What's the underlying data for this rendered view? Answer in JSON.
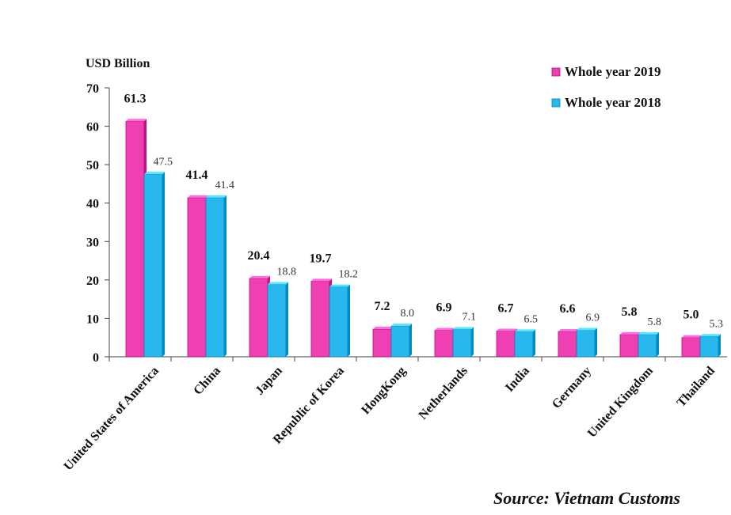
{
  "chart_data": {
    "type": "bar",
    "ylabel": "USD Billion",
    "ylim": [
      0,
      70
    ],
    "yticks": [
      0,
      10,
      20,
      30,
      40,
      50,
      60,
      70
    ],
    "grid": false,
    "legend": "top-right",
    "categories": [
      "United States of America",
      "China",
      "Japan",
      "Republic of Korea",
      "HongKong",
      "Netherlands",
      "India",
      "Germany",
      "United Kingdom",
      "Thailand"
    ],
    "series": [
      {
        "name": "Whole year 2019",
        "color": "#ee3fb3",
        "values": [
          61.3,
          41.4,
          20.4,
          19.7,
          7.2,
          6.9,
          6.7,
          6.6,
          5.8,
          5.0
        ],
        "labels": [
          "61.3",
          "41.4",
          "20.4",
          "19.7",
          "7.2",
          "6.9",
          "6.7",
          "6.6",
          "5.8",
          "5.0"
        ]
      },
      {
        "name": "Whole year 2018",
        "color": "#29b8ee",
        "values": [
          47.5,
          41.4,
          18.8,
          18.2,
          8.0,
          7.1,
          6.5,
          6.9,
          5.8,
          5.3
        ],
        "labels": [
          "47.5",
          "41.4",
          "18.8",
          "18.2",
          "8.0",
          "7.1",
          "6.5",
          "6.9",
          "5.8",
          "5.3"
        ]
      }
    ]
  },
  "source": "Source: Vietnam Customs"
}
